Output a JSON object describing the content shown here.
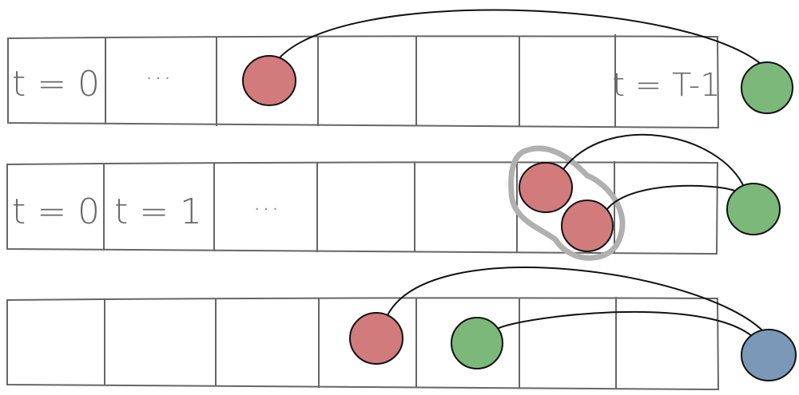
{
  "colors": {
    "background": "#ffffff",
    "cell_stroke": "#666666",
    "red_ball": "#d17b7d",
    "green_ball": "#7cb87a",
    "blue_ball": "#7b98b8",
    "highlight": "#b0b0b0",
    "arc_stroke": "#111111"
  },
  "rows": [
    {
      "cells": [
        {
          "label": "t = 0"
        },
        {
          "label": "· · ·"
        },
        {
          "label": ""
        },
        {
          "label": ""
        },
        {
          "label": ""
        },
        {
          "label": ""
        },
        {
          "label": "t = T-1"
        }
      ]
    },
    {
      "cells": [
        {
          "label": "t = 0"
        },
        {
          "label": "t = 1"
        },
        {
          "label": "· · ·"
        },
        {
          "label": ""
        },
        {
          "label": ""
        },
        {
          "label": ""
        },
        {
          "label": ""
        }
      ]
    },
    {
      "cells": [
        {
          "label": ""
        },
        {
          "label": ""
        },
        {
          "label": ""
        },
        {
          "label": ""
        },
        {
          "label": ""
        },
        {
          "label": ""
        },
        {
          "label": ""
        }
      ]
    }
  ]
}
